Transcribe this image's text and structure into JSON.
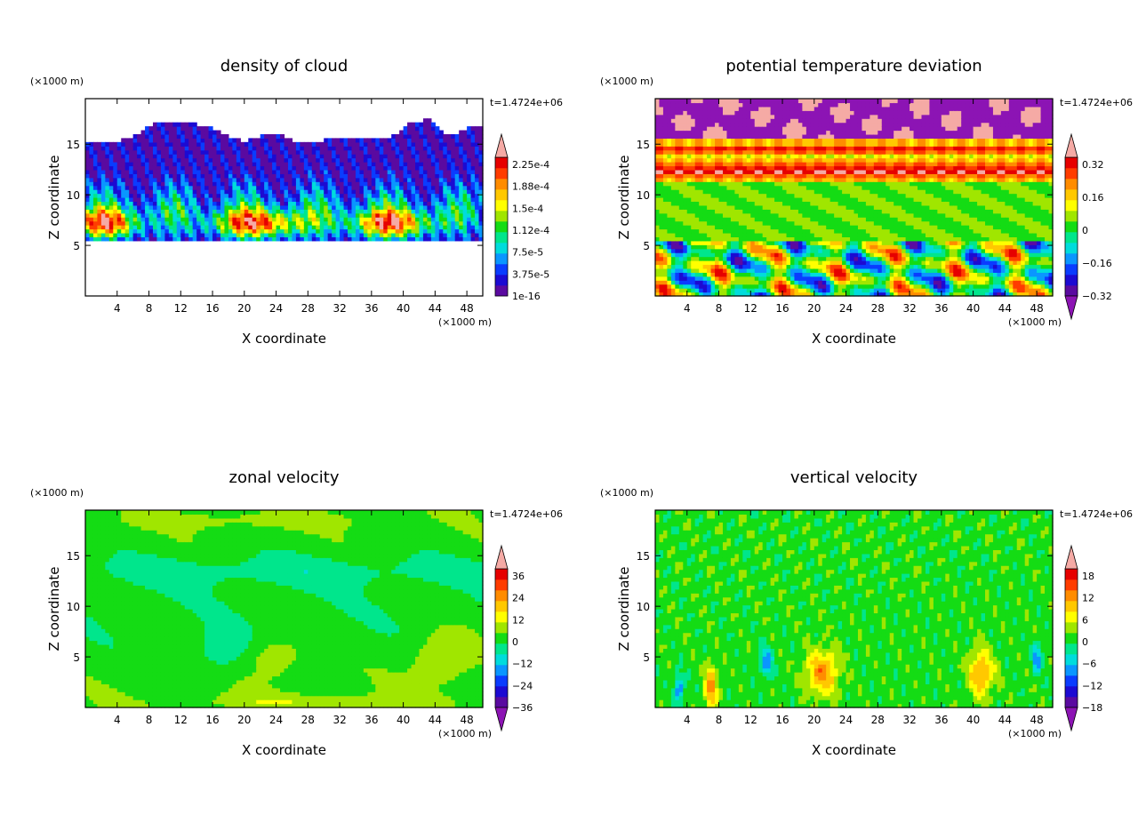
{
  "figure": {
    "background": "#ffffff"
  },
  "chart_data": [
    {
      "id": "cloud",
      "type": "heatmap",
      "title": "density of cloud",
      "xlabel": "X coordinate",
      "ylabel": "Z coordinate",
      "x_unit": "(×1000 m)",
      "y_unit": "(×1000 m)",
      "time_label": "t=1.4724e+06",
      "xlim": [
        0,
        50
      ],
      "ylim": [
        0,
        19.5
      ],
      "xticks": [
        4,
        8,
        12,
        16,
        20,
        24,
        28,
        32,
        36,
        40,
        44,
        48
      ],
      "yticks": [
        5,
        10,
        15
      ],
      "colorbar": {
        "labels": [
          "2.25e-4",
          "1.88e-4",
          "1.5e-4",
          "1.12e-4",
          "7.5e-5",
          "3.75e-5",
          "1e-16"
        ],
        "extend": "max",
        "palette": [
          "#5a0aa0",
          "#1c0ad2",
          "#0a3cff",
          "#0a96ff",
          "#00dcdc",
          "#00e68c",
          "#14dc14",
          "#a0e600",
          "#ffff00",
          "#ffc800",
          "#ff8c00",
          "#ff3c00",
          "#e60000"
        ],
        "over_color": "#f5aaa5"
      },
      "field": {
        "kind": "cloud",
        "z_base": 5.3,
        "z_top": 15.2,
        "plumes": [
          [
            1,
            6,
            2.8
          ],
          [
            19,
            6,
            4.5
          ],
          [
            36,
            6,
            4
          ]
        ]
      }
    },
    {
      "id": "theta",
      "type": "heatmap",
      "title": "potential temperature deviation",
      "xlabel": "X coordinate",
      "ylabel": "Z coordinate",
      "x_unit": "(×1000 m)",
      "y_unit": "(×1000 m)",
      "time_label": "t=1.4724e+06",
      "xlim": [
        0,
        50
      ],
      "ylim": [
        0,
        19.5
      ],
      "xticks": [
        4,
        8,
        12,
        16,
        20,
        24,
        28,
        32,
        36,
        40,
        44,
        48
      ],
      "yticks": [
        5,
        10,
        15
      ],
      "colorbar": {
        "labels": [
          "0.32",
          "0.16",
          "0",
          "−0.16",
          "−0.32"
        ],
        "extend": "both",
        "palette": [
          "#5a0aa0",
          "#1c0ad2",
          "#0a3cff",
          "#0a96ff",
          "#00dcdc",
          "#00e68c",
          "#14dc14",
          "#a0e600",
          "#ffff00",
          "#ffc800",
          "#ff8c00",
          "#ff3c00",
          "#e60000"
        ],
        "over_color": "#f5aaa5",
        "under_color": "#8c14b4"
      },
      "field": {
        "kind": "theta"
      }
    },
    {
      "id": "u",
      "type": "heatmap",
      "title": "zonal velocity",
      "xlabel": "X coordinate",
      "ylabel": "Z coordinate",
      "x_unit": "(×1000 m)",
      "y_unit": "(×1000 m)",
      "time_label": "t=1.4724e+06",
      "xlim": [
        0,
        50
      ],
      "ylim": [
        0,
        19.5
      ],
      "xticks": [
        4,
        8,
        12,
        16,
        20,
        24,
        28,
        32,
        36,
        40,
        44,
        48
      ],
      "yticks": [
        5,
        10,
        15
      ],
      "colorbar": {
        "labels": [
          "36",
          "24",
          "12",
          "0",
          "−12",
          "−24",
          "−36"
        ],
        "extend": "both",
        "palette": [
          "#5a0aa0",
          "#1c0ad2",
          "#0a3cff",
          "#0a96ff",
          "#00dcdc",
          "#00e68c",
          "#14dc14",
          "#a0e600",
          "#ffff00",
          "#ffc800",
          "#ff8c00",
          "#ff3c00",
          "#e60000"
        ],
        "over_color": "#f5aaa5",
        "under_color": "#8c14b4"
      },
      "field": {
        "kind": "u"
      }
    },
    {
      "id": "w",
      "type": "heatmap",
      "title": "vertical velocity",
      "xlabel": "X coordinate",
      "ylabel": "Z coordinate",
      "x_unit": "(×1000 m)",
      "y_unit": "(×1000 m)",
      "time_label": "t=1.4724e+06",
      "xlim": [
        0,
        50
      ],
      "ylim": [
        0,
        19.5
      ],
      "xticks": [
        4,
        8,
        12,
        16,
        20,
        24,
        28,
        32,
        36,
        40,
        44,
        48
      ],
      "yticks": [
        5,
        10,
        15
      ],
      "colorbar": {
        "labels": [
          "18",
          "12",
          "6",
          "0",
          "−6",
          "−12",
          "−18"
        ],
        "extend": "both",
        "palette": [
          "#5a0aa0",
          "#1c0ad2",
          "#0a3cff",
          "#0a96ff",
          "#00dcdc",
          "#00e68c",
          "#14dc14",
          "#a0e600",
          "#ffff00",
          "#ffc800",
          "#ff8c00",
          "#ff3c00",
          "#e60000"
        ],
        "over_color": "#f5aaa5",
        "under_color": "#8c14b4"
      },
      "field": {
        "kind": "w",
        "updrafts": [
          [
            21,
            3.5,
            2
          ],
          [
            41,
            3.5,
            1.5
          ],
          [
            7,
            2,
            0.8
          ]
        ],
        "downdrafts": [
          [
            14,
            4.5,
            0.8
          ],
          [
            48,
            5,
            0.6
          ],
          [
            3,
            2,
            0.6
          ]
        ]
      }
    }
  ]
}
